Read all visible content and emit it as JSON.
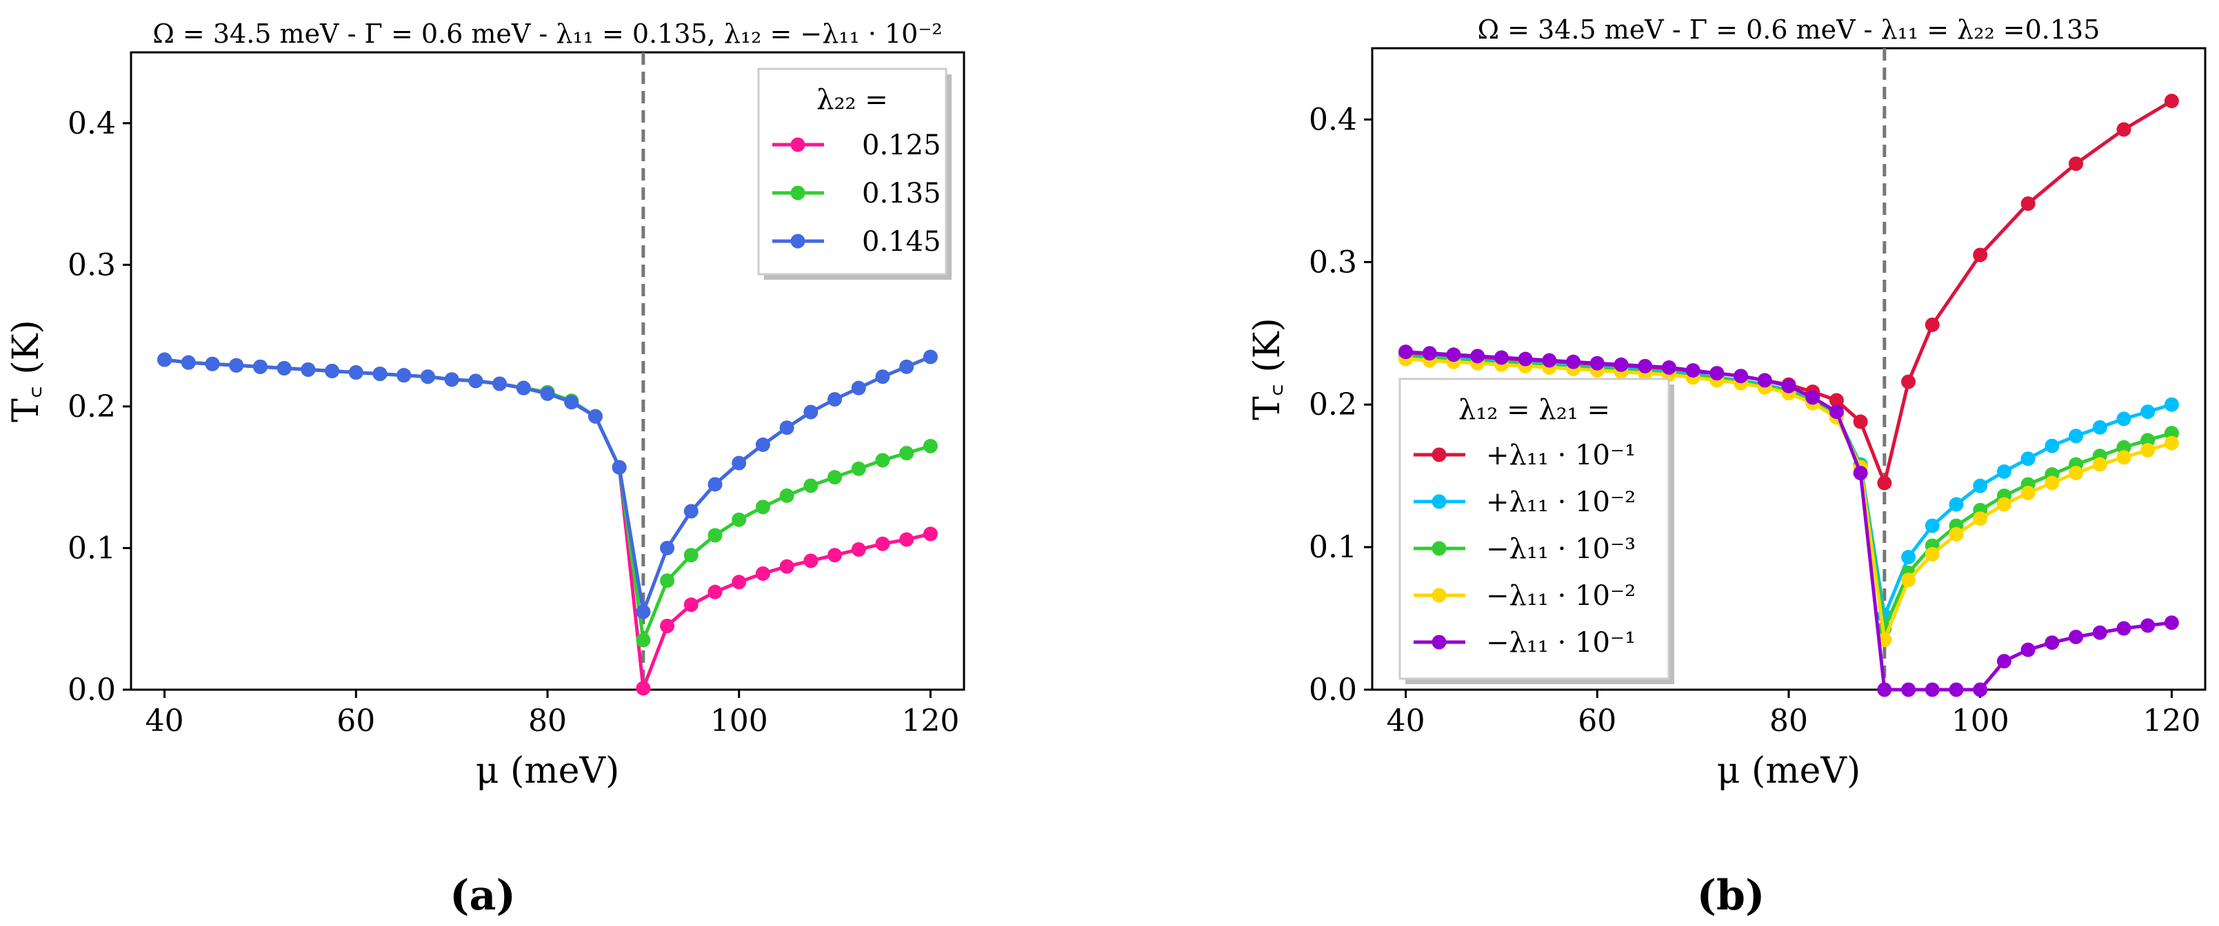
{
  "chart_data": [
    {
      "type": "line",
      "panel_label": "(a)",
      "title": "Ω = 34.5 meV - Γ = 0.6 meV - λ₁₁ = 0.135, λ₁₂ = −λ₁₁ · 10⁻²",
      "xlabel": "μ (meV)",
      "ylabel": "T꜀ (K)",
      "xlim": [
        36.5,
        123.5
      ],
      "ylim": [
        0,
        0.45
      ],
      "xticks": [
        40,
        60,
        80,
        100,
        120
      ],
      "xtick_labels": [
        "40",
        "60",
        "80",
        "100",
        "120"
      ],
      "yticks": [
        0,
        0.1,
        0.2,
        0.3,
        0.4
      ],
      "ytick_labels": [
        "0.0",
        "0.1",
        "0.2",
        "0.3",
        "0.4"
      ],
      "vline_x": 90,
      "legend_title": "λ₂₂ =",
      "legend_position": "top-right",
      "series": [
        {
          "name": "0.125",
          "color": "#ff1493",
          "x": [
            40,
            42.5,
            45,
            47.5,
            50,
            52.5,
            55,
            57.5,
            60,
            62.5,
            65,
            67.5,
            70,
            72.5,
            75,
            77.5,
            80,
            82.5,
            85,
            87.5,
            90,
            92.5,
            95,
            97.5,
            100,
            102.5,
            105,
            107.5,
            110,
            112.5,
            115,
            117.5,
            120
          ],
          "y": [
            0.233,
            0.231,
            0.23,
            0.229,
            0.228,
            0.227,
            0.226,
            0.225,
            0.224,
            0.223,
            0.222,
            0.221,
            0.219,
            0.218,
            0.216,
            0.213,
            0.21,
            0.203,
            0.193,
            0.157,
            0.001,
            0.045,
            0.06,
            0.069,
            0.076,
            0.082,
            0.087,
            0.091,
            0.095,
            0.099,
            0.103,
            0.106,
            0.11
          ]
        },
        {
          "name": "0.135",
          "color": "#32cd32",
          "x": [
            40,
            42.5,
            45,
            47.5,
            50,
            52.5,
            55,
            57.5,
            60,
            62.5,
            65,
            67.5,
            70,
            72.5,
            75,
            77.5,
            80,
            82.5,
            85,
            87.5,
            90,
            92.5,
            95,
            97.5,
            100,
            102.5,
            105,
            107.5,
            110,
            112.5,
            115,
            117.5,
            120
          ],
          "y": [
            0.233,
            0.231,
            0.23,
            0.229,
            0.228,
            0.227,
            0.226,
            0.225,
            0.224,
            0.223,
            0.222,
            0.221,
            0.219,
            0.218,
            0.216,
            0.213,
            0.21,
            0.204,
            0.193,
            0.157,
            0.035,
            0.077,
            0.095,
            0.109,
            0.12,
            0.129,
            0.137,
            0.144,
            0.15,
            0.156,
            0.162,
            0.167,
            0.172
          ]
        },
        {
          "name": "0.145",
          "color": "#4169e1",
          "x": [
            40,
            42.5,
            45,
            47.5,
            50,
            52.5,
            55,
            57.5,
            60,
            62.5,
            65,
            67.5,
            70,
            72.5,
            75,
            77.5,
            80,
            82.5,
            85,
            87.5,
            90,
            92.5,
            95,
            97.5,
            100,
            102.5,
            105,
            107.5,
            110,
            112.5,
            115,
            117.5,
            120
          ],
          "y": [
            0.233,
            0.231,
            0.23,
            0.229,
            0.228,
            0.227,
            0.226,
            0.225,
            0.224,
            0.223,
            0.222,
            0.221,
            0.219,
            0.218,
            0.216,
            0.213,
            0.209,
            0.203,
            0.193,
            0.157,
            0.055,
            0.1,
            0.126,
            0.145,
            0.16,
            0.173,
            0.185,
            0.196,
            0.205,
            0.213,
            0.221,
            0.228,
            0.235
          ]
        }
      ]
    },
    {
      "type": "line",
      "panel_label": "(b)",
      "title": "Ω = 34.5 meV - Γ = 0.6 meV - λ₁₁ = λ₂₂ =0.135",
      "xlabel": "μ (meV)",
      "ylabel": "T꜀ (K)",
      "xlim": [
        36.5,
        123.5
      ],
      "ylim": [
        0,
        0.45
      ],
      "xticks": [
        40,
        60,
        80,
        100,
        120
      ],
      "xtick_labels": [
        "40",
        "60",
        "80",
        "100",
        "120"
      ],
      "yticks": [
        0,
        0.1,
        0.2,
        0.3,
        0.4
      ],
      "ytick_labels": [
        "0.0",
        "0.1",
        "0.2",
        "0.3",
        "0.4"
      ],
      "vline_x": 90,
      "legend_title": "λ₁₂ = λ₂₁ =",
      "legend_position": "lower-left",
      "series": [
        {
          "name": "+λ₁₁ · 10⁻¹",
          "color": "#dc143c",
          "x": [
            40,
            42.5,
            45,
            47.5,
            50,
            52.5,
            55,
            57.5,
            60,
            62.5,
            65,
            67.5,
            70,
            72.5,
            75,
            77.5,
            80,
            82.5,
            85,
            87.5,
            90,
            92.5,
            95,
            100,
            105,
            110,
            115,
            120
          ],
          "y": [
            0.236,
            0.235,
            0.234,
            0.233,
            0.232,
            0.231,
            0.23,
            0.229,
            0.228,
            0.227,
            0.226,
            0.225,
            0.223,
            0.222,
            0.22,
            0.217,
            0.214,
            0.209,
            0.203,
            0.188,
            0.145,
            0.216,
            0.256,
            0.305,
            0.341,
            0.369,
            0.393,
            0.413
          ]
        },
        {
          "name": "+λ₁₁ · 10⁻²",
          "color": "#00bfff",
          "x": [
            40,
            42.5,
            45,
            47.5,
            50,
            52.5,
            55,
            57.5,
            60,
            62.5,
            65,
            67.5,
            70,
            72.5,
            75,
            77.5,
            80,
            82.5,
            85,
            87.5,
            90,
            92.5,
            95,
            97.5,
            100,
            102.5,
            105,
            107.5,
            110,
            112.5,
            115,
            117.5,
            120
          ],
          "y": [
            0.234,
            0.233,
            0.232,
            0.231,
            0.23,
            0.229,
            0.228,
            0.227,
            0.226,
            0.225,
            0.224,
            0.223,
            0.221,
            0.219,
            0.217,
            0.214,
            0.21,
            0.203,
            0.193,
            0.158,
            0.052,
            0.093,
            0.115,
            0.13,
            0.143,
            0.153,
            0.162,
            0.171,
            0.178,
            0.184,
            0.19,
            0.195,
            0.2
          ]
        },
        {
          "name": "−λ₁₁ · 10⁻³",
          "color": "#32cd32",
          "x": [
            40,
            42.5,
            45,
            47.5,
            50,
            52.5,
            55,
            57.5,
            60,
            62.5,
            65,
            67.5,
            70,
            72.5,
            75,
            77.5,
            80,
            82.5,
            85,
            87.5,
            90,
            92.5,
            95,
            97.5,
            100,
            102.5,
            105,
            107.5,
            110,
            112.5,
            115,
            117.5,
            120
          ],
          "y": [
            0.233,
            0.232,
            0.231,
            0.23,
            0.229,
            0.228,
            0.227,
            0.226,
            0.225,
            0.224,
            0.223,
            0.222,
            0.22,
            0.218,
            0.216,
            0.213,
            0.209,
            0.202,
            0.192,
            0.157,
            0.043,
            0.082,
            0.101,
            0.115,
            0.126,
            0.136,
            0.144,
            0.151,
            0.158,
            0.164,
            0.17,
            0.175,
            0.18
          ]
        },
        {
          "name": "−λ₁₁ · 10⁻²",
          "color": "#ffd700",
          "x": [
            40,
            42.5,
            45,
            47.5,
            50,
            52.5,
            55,
            57.5,
            60,
            62.5,
            65,
            67.5,
            70,
            72.5,
            75,
            77.5,
            80,
            82.5,
            85,
            87.5,
            90,
            92.5,
            95,
            97.5,
            100,
            102.5,
            105,
            107.5,
            110,
            112.5,
            115,
            117.5,
            120
          ],
          "y": [
            0.232,
            0.231,
            0.23,
            0.229,
            0.228,
            0.227,
            0.226,
            0.225,
            0.224,
            0.223,
            0.222,
            0.221,
            0.219,
            0.217,
            0.215,
            0.212,
            0.208,
            0.201,
            0.191,
            0.156,
            0.035,
            0.077,
            0.095,
            0.109,
            0.12,
            0.13,
            0.138,
            0.145,
            0.152,
            0.158,
            0.163,
            0.168,
            0.173
          ]
        },
        {
          "name": "−λ₁₁ · 10⁻¹",
          "color": "#9400d3",
          "x": [
            40,
            42.5,
            45,
            47.5,
            50,
            52.5,
            55,
            57.5,
            60,
            62.5,
            65,
            67.5,
            70,
            72.5,
            75,
            77.5,
            80,
            82.5,
            85,
            87.5,
            90,
            92.5,
            95,
            97.5,
            100,
            102.5,
            105,
            107.5,
            110,
            112.5,
            115,
            117.5,
            120
          ],
          "y": [
            0.237,
            0.236,
            0.235,
            0.234,
            0.233,
            0.232,
            0.231,
            0.23,
            0.229,
            0.228,
            0.227,
            0.226,
            0.224,
            0.222,
            0.22,
            0.217,
            0.213,
            0.205,
            0.195,
            0.152,
            0.0,
            0.0,
            0.0,
            0.0,
            0.0,
            0.02,
            0.028,
            0.033,
            0.037,
            0.04,
            0.043,
            0.045,
            0.047
          ]
        }
      ]
    }
  ]
}
